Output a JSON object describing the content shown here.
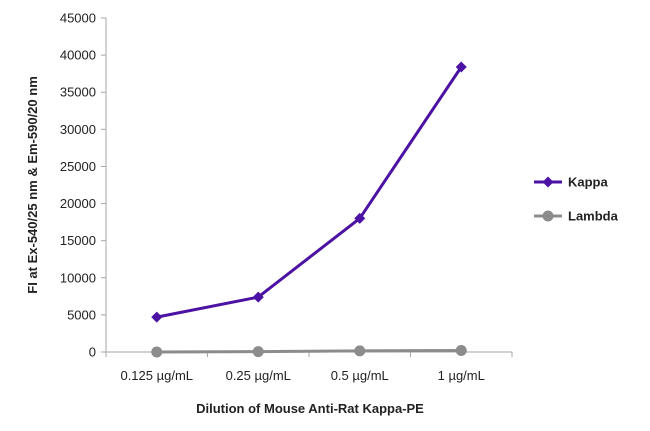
{
  "chart_data": {
    "type": "line",
    "categories": [
      "0.125 µg/mL",
      "0.25 µg/mL",
      "0.5 µg/mL",
      "1 µg/mL"
    ],
    "series": [
      {
        "name": "Kappa",
        "values": [
          4700,
          7400,
          18000,
          38400
        ],
        "color": "#4b12a3",
        "marker": "diamond"
      },
      {
        "name": "Lambda",
        "values": [
          0,
          50,
          150,
          200
        ],
        "color": "#8c8c8c",
        "marker": "circle"
      }
    ],
    "title": "",
    "xlabel": "Dilution of Mouse Anti-Rat Kappa-PE",
    "ylabel": "FI at Ex-540/25 nm & Em-590/20 nm",
    "ylim": [
      0,
      45000
    ],
    "yticks": [
      0,
      5000,
      10000,
      15000,
      20000,
      25000,
      30000,
      35000,
      40000,
      45000
    ],
    "grid": false,
    "legend": "right"
  }
}
